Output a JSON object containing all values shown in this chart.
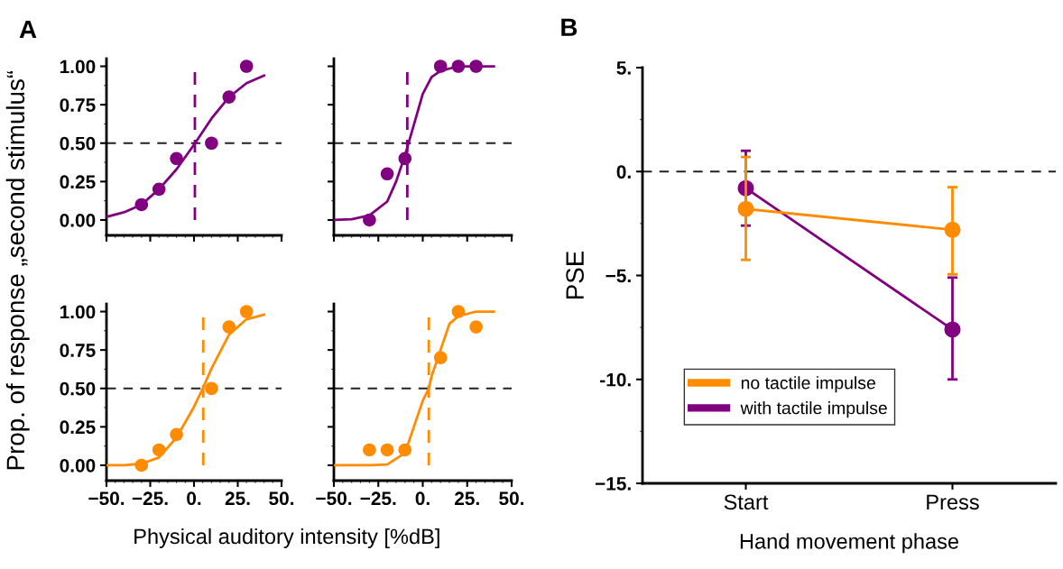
{
  "chart_data": [
    {
      "type": "scatter",
      "ylabel": "Prop. of response „second stimulus“",
      "annotations": [
        "A"
      ],
      "xlim": [
        -50,
        50
      ],
      "ylim": [
        -0.1,
        1.05
      ],
      "tick_labels": "y",
      "marker": "circle",
      "xticks": [
        {
          "value": -50,
          "label": null
        },
        {
          "value": -25,
          "label": null
        },
        {
          "value": 0,
          "label": null
        },
        {
          "value": 25,
          "label": null
        },
        {
          "value": 50,
          "label": null
        }
      ],
      "yticks": [
        {
          "value": 0,
          "label": "0.00"
        },
        {
          "value": 0.25,
          "label": "0.25"
        },
        {
          "value": 0.5,
          "label": "0.50"
        },
        {
          "value": 0.75,
          "label": "0.75"
        },
        {
          "value": 1,
          "label": "1.00"
        }
      ],
      "ref_lines": [
        {
          "axis": "y",
          "value": 0.5,
          "color": "#222222",
          "line_style": "dashed"
        },
        {
          "axis": "x",
          "value": 0.5,
          "color": "#800080",
          "line_style": "dashed"
        }
      ],
      "series": [
        {
          "type": "scatter",
          "color": "#800080",
          "x": [
            -30,
            -20,
            -10,
            10,
            20,
            30
          ],
          "values": [
            0.1,
            0.2,
            0.4,
            0.5,
            0.8,
            1.0
          ]
        },
        {
          "type": "line",
          "color": "#800080",
          "marker": "none",
          "x": [
            -50,
            -40,
            -30,
            -20,
            -10,
            0,
            10,
            20,
            30,
            40
          ],
          "values": [
            0.02,
            0.05,
            0.1,
            0.2,
            0.33,
            0.49,
            0.66,
            0.8,
            0.89,
            0.94
          ]
        }
      ]
    },
    {
      "type": "scatter",
      "xlim": [
        -50,
        50
      ],
      "ylim": [
        -0.1,
        1.05
      ],
      "tick_labels": false,
      "marker": "circle",
      "xticks": [
        {
          "value": -50,
          "label": null
        },
        {
          "value": -25,
          "label": null
        },
        {
          "value": 0,
          "label": null
        },
        {
          "value": 25,
          "label": null
        },
        {
          "value": 50,
          "label": null
        }
      ],
      "yticks": [
        {
          "value": 0,
          "label": null
        },
        {
          "value": 0.25,
          "label": null
        },
        {
          "value": 0.5,
          "label": null
        },
        {
          "value": 0.75,
          "label": null
        },
        {
          "value": 1,
          "label": null
        }
      ],
      "ref_lines": [
        {
          "axis": "y",
          "value": 0.5,
          "color": "#222222",
          "line_style": "dashed"
        },
        {
          "axis": "x",
          "value": -8.7,
          "color": "#800080",
          "line_style": "dashed"
        }
      ],
      "series": [
        {
          "type": "scatter",
          "color": "#800080",
          "x": [
            -30,
            -20,
            -10,
            10,
            20,
            30
          ],
          "values": [
            0.0,
            0.3,
            0.4,
            1.0,
            1.0,
            1.0
          ]
        },
        {
          "type": "line",
          "color": "#800080",
          "marker": "none",
          "x": [
            -50,
            -40,
            -30,
            -20,
            -15,
            -10,
            -5,
            0,
            5,
            10,
            20,
            30,
            40
          ],
          "values": [
            0.0,
            0.005,
            0.03,
            0.12,
            0.25,
            0.42,
            0.62,
            0.82,
            0.93,
            0.97,
            1.0,
            1.0,
            1.0
          ]
        }
      ]
    },
    {
      "type": "scatter",
      "xlabel": "Physical auditory intensity [%dB]",
      "xlim": [
        -50,
        50
      ],
      "ylim": [
        -0.1,
        1.05
      ],
      "marker": "circle",
      "xticks": [
        {
          "value": -50,
          "label": "−50."
        },
        {
          "value": -25,
          "label": "−25."
        },
        {
          "value": 0,
          "label": "0."
        },
        {
          "value": 25,
          "label": "25."
        },
        {
          "value": 50,
          "label": "50."
        }
      ],
      "yticks": [
        {
          "value": 0,
          "label": "0.00"
        },
        {
          "value": 0.25,
          "label": "0.25"
        },
        {
          "value": 0.5,
          "label": "0.50"
        },
        {
          "value": 0.75,
          "label": "0.75"
        },
        {
          "value": 1,
          "label": "1.00"
        }
      ],
      "ref_lines": [
        {
          "axis": "y",
          "value": 0.5,
          "color": "#222222",
          "line_style": "dashed"
        },
        {
          "axis": "x",
          "value": 5.3,
          "color": "#ff8c00",
          "line_style": "dashed"
        }
      ],
      "series": [
        {
          "type": "scatter",
          "color": "#ff8c00",
          "x": [
            -30,
            -20,
            -10,
            10,
            20,
            30
          ],
          "values": [
            0.0,
            0.1,
            0.2,
            0.5,
            0.9,
            1.0
          ]
        },
        {
          "type": "line",
          "color": "#ff8c00",
          "marker": "none",
          "x": [
            -50,
            -40,
            -30,
            -20,
            -10,
            0,
            5,
            10,
            20,
            30,
            40
          ],
          "values": [
            0.0,
            0.0,
            0.01,
            0.05,
            0.18,
            0.38,
            0.5,
            0.63,
            0.85,
            0.95,
            0.98
          ]
        }
      ]
    },
    {
      "type": "scatter",
      "xlim": [
        -50,
        50
      ],
      "ylim": [
        -0.1,
        1.05
      ],
      "tick_labels": "x",
      "marker": "circle",
      "xticks": [
        {
          "value": -50,
          "label": "−50."
        },
        {
          "value": -25,
          "label": "−25."
        },
        {
          "value": 0,
          "label": "0."
        },
        {
          "value": 25,
          "label": "25."
        },
        {
          "value": 50,
          "label": "50."
        }
      ],
      "yticks": [
        {
          "value": 0,
          "label": null
        },
        {
          "value": 0.25,
          "label": null
        },
        {
          "value": 0.5,
          "label": null
        },
        {
          "value": 0.75,
          "label": null
        },
        {
          "value": 1,
          "label": null
        }
      ],
      "ref_lines": [
        {
          "axis": "y",
          "value": 0.5,
          "color": "#222222",
          "line_style": "dashed"
        },
        {
          "axis": "x",
          "value": 3.4,
          "color": "#ff8c00",
          "line_style": "dashed"
        }
      ],
      "series": [
        {
          "type": "scatter",
          "color": "#ff8c00",
          "x": [
            -30,
            -20,
            -10,
            10,
            20,
            30
          ],
          "values": [
            0.1,
            0.1,
            0.1,
            0.7,
            1.0,
            0.9
          ]
        },
        {
          "type": "line",
          "color": "#ff8c00",
          "marker": "none",
          "x": [
            -50,
            -30,
            -20,
            -10,
            -5,
            0,
            3.4,
            5,
            10,
            15,
            20,
            30,
            40
          ],
          "values": [
            0.0,
            0.0,
            0.005,
            0.08,
            0.25,
            0.42,
            0.5,
            0.58,
            0.75,
            0.92,
            0.97,
            1.0,
            1.0
          ]
        }
      ]
    },
    {
      "type": "line",
      "ylabel": "PSE",
      "xlabel": "Hand movement phase",
      "annotations": [
        "B"
      ],
      "categories": [
        "Start",
        "Press"
      ],
      "ylim": [
        -15,
        5
      ],
      "marker": "circle",
      "legend": "lower left",
      "yticks": [
        {
          "value": 5,
          "label": "5."
        },
        {
          "value": 0,
          "label": "0."
        },
        {
          "value": -5,
          "label": "−5."
        },
        {
          "value": -10,
          "label": "-10."
        },
        {
          "value": -15,
          "label": "−15."
        }
      ],
      "ref_lines": [
        {
          "axis": "y",
          "value": 0,
          "color": "#222222",
          "line_style": "dashed"
        }
      ],
      "series": [
        {
          "name": "with tactile impulse",
          "color": "#800080",
          "values": [
            -0.8,
            -7.6
          ],
          "errors": [
            [
              -2.6,
              1.0
            ],
            [
              -10.0,
              -5.1
            ]
          ]
        },
        {
          "name": "no tactile impulse",
          "color": "#ff8c00",
          "values": [
            -1.8,
            -2.8
          ],
          "errors": [
            [
              -4.25,
              0.7
            ],
            [
              -4.95,
              -0.75
            ]
          ]
        }
      ]
    }
  ]
}
